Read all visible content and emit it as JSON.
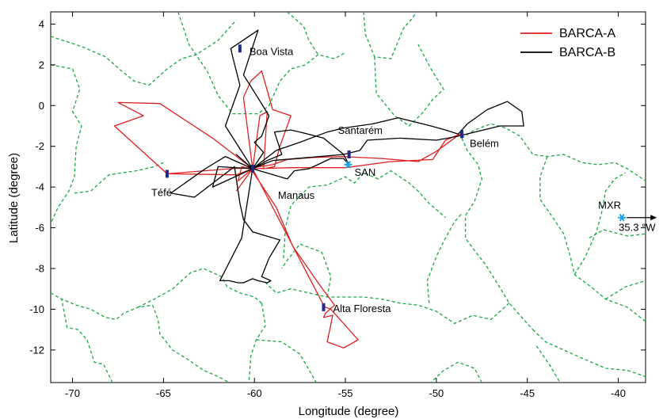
{
  "chart_data": {
    "type": "line",
    "xlabel": "Longitude (degree)",
    "ylabel": "Latitude (degree)",
    "xlim": [
      -71.2,
      -38.5
    ],
    "ylim": [
      -13.6,
      4.6
    ],
    "xticks": [
      -70,
      -65,
      -60,
      -55,
      -50,
      -45,
      -40
    ],
    "yticks": [
      -12,
      -10,
      -8,
      -6,
      -4,
      -2,
      0,
      2,
      4
    ],
    "grid": false,
    "legend": {
      "placement": "top-right",
      "entries": [
        {
          "label": "BARCA-A",
          "color": "#e02020"
        },
        {
          "label": "BARCA-B",
          "color": "#000000"
        }
      ]
    },
    "series": [
      {
        "name": "BARCA-A",
        "color": "#e02020",
        "x": [
          -64.8,
          -61.3,
          -60.1,
          -59.0,
          -58.2,
          -56.8,
          -55.2,
          -53.0,
          -51.0,
          -50.0,
          -48.7,
          -49.5,
          -50.2,
          -52.5,
          -55.0,
          -58.0,
          -60.1,
          -62.3,
          -65.2,
          -67.5,
          -66.1,
          -67.7,
          -64.8,
          -61.0,
          -60.1,
          -60.6,
          -60.2,
          -59.6,
          -59.0,
          -58.0,
          -58.6,
          -58.9,
          -59.5,
          -59.3,
          -59.7,
          -60.1,
          -60.9,
          -60.7,
          -60.2,
          -58.8,
          -57.9,
          -56.5,
          -55.6,
          -56.1,
          -56.2,
          -55.7,
          -56.0,
          -55.1,
          -54.3,
          -55.8,
          -56.1,
          -56.2,
          -60.1,
          -61.0
        ],
        "y": [
          -3.35,
          -3.1,
          -3.05,
          -2.9,
          -2.65,
          -2.55,
          -2.5,
          -2.6,
          -2.75,
          -2.25,
          -1.4,
          -1.7,
          -2.65,
          -2.75,
          -3.05,
          -3.05,
          -3.1,
          -1.6,
          0.1,
          0.15,
          -0.5,
          -1.0,
          -3.35,
          -3.4,
          -3.1,
          0.4,
          1.2,
          1.7,
          -0.2,
          -0.5,
          -2.0,
          -3.0,
          -3.1,
          -0.3,
          -0.5,
          -3.1,
          -3.7,
          -3.0,
          -3.1,
          -5.0,
          -6.9,
          -8.7,
          -9.8,
          -10.2,
          -10.4,
          -10.3,
          -11.6,
          -11.9,
          -11.5,
          -10.0,
          -9.9,
          -9.8,
          -3.1,
          -4.2
        ]
      },
      {
        "name": "BARCA-B",
        "color": "#000000",
        "x": [
          -60.1,
          -61.6,
          -60.8,
          -61.2,
          -61.3,
          -59.8,
          -60.6,
          -60.1,
          -59.2,
          -59.6,
          -60.0,
          -59.5,
          -60.1,
          -61.0,
          -60.1,
          -59.3,
          -58.5,
          -58.9,
          -58.0,
          -57.5,
          -56.2,
          -55.1,
          -54.2,
          -53.8,
          -52.0,
          -50.0,
          -48.8,
          -46.5,
          -45.2,
          -45.3,
          -46.1,
          -47.2,
          -48.3,
          -48.8,
          -49.5,
          -50.3,
          -52.1,
          -53.5,
          -55.1,
          -56.0,
          -57.5,
          -58.8,
          -60.1,
          -61.6,
          -62.7,
          -64.6,
          -63.3,
          -61.1,
          -60.8,
          -60.6,
          -60.1,
          -58.6,
          -59.2,
          -59.6,
          -59.1,
          -59.3,
          -59.8,
          -60.1,
          -60.6,
          -60.9,
          -61.4,
          -61.9,
          -60.7,
          -60.1,
          -62.0,
          -62.3,
          -60.1,
          -58.2,
          -57.8,
          -57.0,
          -55.8,
          -55.1,
          -54.8,
          -55.1,
          -59.0,
          -60.1
        ],
        "y": [
          -3.1,
          -1.0,
          1.0,
          2.4,
          2.8,
          3.7,
          1.5,
          0.8,
          -0.5,
          -1.5,
          -1.8,
          -2.3,
          -3.1,
          -2.4,
          -3.1,
          -2.7,
          -2.4,
          -1.3,
          -1.2,
          -1.3,
          -1.6,
          -2.4,
          -2.2,
          -1.7,
          -1.6,
          -1.7,
          -1.5,
          -1.0,
          -1.0,
          -0.3,
          0.2,
          -0.2,
          -0.9,
          -1.4,
          -1.2,
          -1.0,
          -0.6,
          -0.9,
          -1.1,
          -1.3,
          -1.8,
          -2.2,
          -3.1,
          -2.5,
          -3.1,
          -4.3,
          -4.5,
          -3.0,
          -4.8,
          -5.6,
          -6.2,
          -6.6,
          -7.5,
          -8.4,
          -8.6,
          -8.7,
          -8.6,
          -8.5,
          -8.7,
          -8.7,
          -8.6,
          -8.6,
          -6.5,
          -3.1,
          -3.0,
          -4.0,
          -3.1,
          -3.6,
          -3.2,
          -3.1,
          -2.6,
          -2.6,
          -2.9,
          -2.4,
          -2.7,
          -3.1
        ]
      }
    ],
    "sites": [
      {
        "label": "Boa Vista",
        "x": -60.8,
        "y": 2.8,
        "marker": "navy"
      },
      {
        "label": "Santarém",
        "x": -54.8,
        "y": -2.4,
        "marker": "navy"
      },
      {
        "label": "SAN",
        "x": -54.85,
        "y": -2.9,
        "marker": "cyan-star"
      },
      {
        "label": "Belém",
        "x": -48.6,
        "y": -1.4,
        "marker": "navy"
      },
      {
        "label": "Téfé",
        "x": -64.8,
        "y": -3.35,
        "marker": "navy"
      },
      {
        "label": "Manaus",
        "x": -60.1,
        "y": -3.1,
        "marker": "navy"
      },
      {
        "label": "Alta Floresta",
        "x": -56.2,
        "y": -9.9,
        "marker": "navy"
      },
      {
        "label": "MXR",
        "x": -39.8,
        "y": -5.5,
        "marker": "cyan-star"
      }
    ],
    "annotation": "35.3 °W",
    "boundary_color": "#18a840",
    "boundaries": [
      [
        [
          -71.2,
          3.4
        ],
        [
          -69.5,
          2.9
        ],
        [
          -68.2,
          2.4
        ],
        [
          -67.3,
          1.7
        ],
        [
          -66.6,
          1.2
        ],
        [
          -65.8,
          1.0
        ],
        [
          -64.8,
          1.8
        ],
        [
          -64.0,
          2.3
        ],
        [
          -63.2,
          2.5
        ],
        [
          -62.0,
          3.2
        ],
        [
          -61.0,
          4.2
        ]
      ],
      [
        [
          -71.2,
          2.0
        ],
        [
          -70.0,
          1.8
        ],
        [
          -69.6,
          0.8
        ],
        [
          -70.0,
          -0.3
        ],
        [
          -69.5,
          -1.0
        ],
        [
          -69.8,
          -2.0
        ],
        [
          -69.9,
          -3.5
        ],
        [
          -70.2,
          -4.2
        ],
        [
          -70.8,
          -5.0
        ],
        [
          -71.2,
          -5.8
        ]
      ],
      [
        [
          -69.9,
          -4.3
        ],
        [
          -69.0,
          -4.2
        ],
        [
          -68.0,
          -3.4
        ],
        [
          -66.5,
          -3.2
        ],
        [
          -65.5,
          -3.0
        ],
        [
          -65.0,
          -2.8
        ]
      ],
      [
        [
          -64.2,
          4.6
        ],
        [
          -63.6,
          3.0
        ],
        [
          -62.6,
          1.7
        ],
        [
          -62.0,
          0.5
        ],
        [
          -61.2,
          -0.4
        ],
        [
          -59.8,
          -0.4
        ],
        [
          -59.2,
          0.0
        ],
        [
          -58.6,
          1.2
        ],
        [
          -58.0,
          1.8
        ],
        [
          -57.2,
          2.0
        ],
        [
          -56.5,
          2.5
        ],
        [
          -55.6,
          2.3
        ],
        [
          -55.0,
          2.6
        ]
      ],
      [
        [
          -58.2,
          4.6
        ],
        [
          -57.3,
          3.9
        ],
        [
          -57.0,
          3.2
        ],
        [
          -56.5,
          2.5
        ]
      ],
      [
        [
          -54.0,
          4.6
        ],
        [
          -53.9,
          3.5
        ],
        [
          -53.4,
          2.4
        ],
        [
          -52.5,
          2.3
        ],
        [
          -51.8,
          3.8
        ],
        [
          -51.3,
          4.3
        ],
        [
          -51.1,
          4.6
        ]
      ],
      [
        [
          -53.4,
          2.4
        ],
        [
          -53.3,
          0.6
        ],
        [
          -52.3,
          -0.5
        ],
        [
          -51.5,
          -1.0
        ],
        [
          -50.8,
          -0.4
        ],
        [
          -50.2,
          0.3
        ],
        [
          -49.6,
          0.8
        ],
        [
          -50.3,
          1.8
        ],
        [
          -51.0,
          3.0
        ]
      ],
      [
        [
          -48.6,
          -1.6
        ],
        [
          -47.9,
          -1.2
        ],
        [
          -47.0,
          -0.9
        ],
        [
          -46.2,
          -1.1
        ],
        [
          -45.4,
          -1.5
        ],
        [
          -44.7,
          -2.4
        ],
        [
          -43.9,
          -2.5
        ],
        [
          -43.0,
          -2.4
        ],
        [
          -42.0,
          -2.8
        ],
        [
          -41.1,
          -2.9
        ],
        [
          -40.2,
          -2.8
        ],
        [
          -39.5,
          -3.1
        ],
        [
          -38.5,
          -3.7
        ]
      ],
      [
        [
          -48.6,
          -1.6
        ],
        [
          -48.3,
          -2.2
        ],
        [
          -47.7,
          -2.9
        ],
        [
          -47.5,
          -3.6
        ],
        [
          -47.9,
          -4.7
        ],
        [
          -48.4,
          -5.4
        ],
        [
          -48.4,
          -6.5
        ],
        [
          -48.0,
          -7.0
        ],
        [
          -47.3,
          -7.8
        ],
        [
          -46.6,
          -8.8
        ],
        [
          -46.0,
          -9.7
        ],
        [
          -45.2,
          -10.5
        ],
        [
          -44.7,
          -11.0
        ]
      ],
      [
        [
          -46.0,
          -9.7
        ],
        [
          -47.0,
          -10.5
        ],
        [
          -48.0,
          -10.3
        ],
        [
          -49.0,
          -10.7
        ],
        [
          -50.0,
          -10.1
        ],
        [
          -51.0,
          -9.8
        ],
        [
          -52.0,
          -9.7
        ],
        [
          -53.0,
          -9.5
        ],
        [
          -54.0,
          -9.4
        ],
        [
          -55.0,
          -9.4
        ],
        [
          -56.0,
          -9.4
        ],
        [
          -57.0,
          -9.2
        ],
        [
          -58.0,
          -9.0
        ],
        [
          -58.8,
          -9.2
        ],
        [
          -59.5,
          -8.6
        ]
      ],
      [
        [
          -50.4,
          -9.7
        ],
        [
          -50.5,
          -8.6
        ],
        [
          -50.0,
          -7.4
        ],
        [
          -49.5,
          -6.5
        ],
        [
          -49.0,
          -5.7
        ],
        [
          -48.6,
          -5.3
        ]
      ],
      [
        [
          -56.0,
          -9.4
        ],
        [
          -55.8,
          -8.4
        ],
        [
          -56.3,
          -7.2
        ],
        [
          -57.5,
          -6.8
        ],
        [
          -58.2,
          -7.6
        ],
        [
          -58.5,
          -8.0
        ]
      ],
      [
        [
          -58.4,
          -7.5
        ],
        [
          -58.3,
          -6.0
        ],
        [
          -58.0,
          -4.9
        ],
        [
          -57.0,
          -4.0
        ],
        [
          -56.0,
          -3.9
        ],
        [
          -55.0,
          -3.5
        ],
        [
          -54.5,
          -3.8
        ],
        [
          -54.0,
          -3.3
        ],
        [
          -53.2,
          -3.6
        ],
        [
          -52.5,
          -3.2
        ],
        [
          -51.5,
          -3.8
        ],
        [
          -51.0,
          -4.2
        ],
        [
          -50.4,
          -4.8
        ],
        [
          -49.5,
          -5.5
        ]
      ],
      [
        [
          -44.7,
          -11.0
        ],
        [
          -44.0,
          -11.6
        ],
        [
          -43.0,
          -12.0
        ],
        [
          -42.0,
          -12.4
        ],
        [
          -40.7,
          -12.9
        ],
        [
          -39.5,
          -13.0
        ],
        [
          -38.5,
          -13.3
        ]
      ],
      [
        [
          -44.5,
          -11.8
        ],
        [
          -43.8,
          -12.7
        ],
        [
          -43.2,
          -13.6
        ]
      ],
      [
        [
          -47.5,
          -13.6
        ],
        [
          -47.9,
          -12.9
        ],
        [
          -48.8,
          -12.6
        ],
        [
          -49.6,
          -13.0
        ],
        [
          -50.3,
          -13.6
        ]
      ],
      [
        [
          -43.9,
          -2.5
        ],
        [
          -44.3,
          -3.5
        ],
        [
          -44.3,
          -4.6
        ],
        [
          -43.6,
          -5.5
        ],
        [
          -43.0,
          -6.3
        ],
        [
          -42.7,
          -7.2
        ],
        [
          -42.4,
          -8.3
        ],
        [
          -41.5,
          -8.9
        ],
        [
          -40.7,
          -9.5
        ],
        [
          -39.5,
          -9.9
        ],
        [
          -38.5,
          -10.6
        ]
      ],
      [
        [
          -42.4,
          -8.3
        ],
        [
          -41.8,
          -7.4
        ],
        [
          -41.2,
          -6.2
        ],
        [
          -40.9,
          -5.2
        ],
        [
          -40.7,
          -4.2
        ],
        [
          -40.2,
          -3.6
        ],
        [
          -39.6,
          -3.3
        ]
      ],
      [
        [
          -41.6,
          -6.5
        ],
        [
          -40.8,
          -6.1
        ],
        [
          -39.5,
          -6.4
        ],
        [
          -38.5,
          -6.3
        ]
      ],
      [
        [
          -40.7,
          -9.5
        ],
        [
          -39.6,
          -8.9
        ],
        [
          -38.5,
          -8.6
        ]
      ],
      [
        [
          -71.2,
          -9.2
        ],
        [
          -70.6,
          -9.5
        ],
        [
          -69.8,
          -9.8
        ],
        [
          -69.0,
          -10.0
        ],
        [
          -68.2,
          -10.4
        ],
        [
          -67.6,
          -10.5
        ],
        [
          -67.2,
          -10.2
        ],
        [
          -66.4,
          -9.9
        ],
        [
          -65.6,
          -9.8
        ],
        [
          -65.3,
          -10.5
        ],
        [
          -65.2,
          -11.2
        ],
        [
          -64.5,
          -12.0
        ],
        [
          -63.6,
          -12.5
        ],
        [
          -62.8,
          -13.0
        ],
        [
          -62.0,
          -13.3
        ],
        [
          -61.4,
          -13.6
        ]
      ],
      [
        [
          -66.4,
          -9.9
        ],
        [
          -65.5,
          -9.5
        ],
        [
          -64.5,
          -9.0
        ],
        [
          -63.5,
          -8.2
        ],
        [
          -62.8,
          -8.0
        ],
        [
          -61.8,
          -8.4
        ],
        [
          -61.5,
          -8.9
        ],
        [
          -60.8,
          -9.2
        ],
        [
          -60.0,
          -9.4
        ],
        [
          -59.6,
          -9.7
        ]
      ],
      [
        [
          -59.6,
          -9.7
        ],
        [
          -59.4,
          -10.8
        ],
        [
          -59.9,
          -11.5
        ],
        [
          -60.2,
          -12.3
        ],
        [
          -60.3,
          -13.6
        ]
      ],
      [
        [
          -59.9,
          -11.5
        ],
        [
          -58.5,
          -11.6
        ],
        [
          -57.5,
          -12.2
        ],
        [
          -56.6,
          -13.6
        ]
      ],
      [
        [
          -67.8,
          -13.6
        ],
        [
          -68.3,
          -12.7
        ],
        [
          -68.8,
          -12.6
        ],
        [
          -69.2,
          -11.5
        ],
        [
          -69.7,
          -11.0
        ],
        [
          -70.3,
          -10.9
        ],
        [
          -70.6,
          -9.5
        ]
      ]
    ]
  }
}
